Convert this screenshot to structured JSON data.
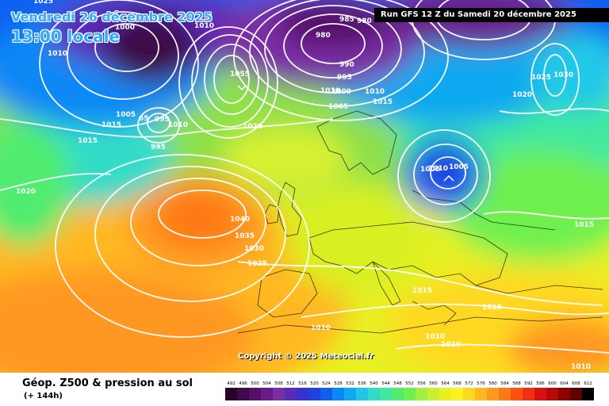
{
  "header": {
    "valid_date": "Vendredi 26 décembre 2025",
    "valid_time": "13:00 locale",
    "run_info": "Run GFS 12 Z du Samedi 20 décembre 2025"
  },
  "footer": {
    "parameter_title": "Géop. Z500 & pression au sol",
    "lead_time": "(+ 144h)",
    "copyright": "Copyright © 2025 Meteociel.fr"
  },
  "legend": {
    "values": [
      "492",
      "496",
      "500",
      "504",
      "508",
      "512",
      "516",
      "520",
      "524",
      "528",
      "532",
      "536",
      "540",
      "544",
      "548",
      "552",
      "556",
      "560",
      "564",
      "568",
      "572",
      "576",
      "580",
      "584",
      "588",
      "592",
      "596",
      "600",
      "604",
      "608",
      "612"
    ],
    "colors": [
      "#2b0029",
      "#3d0a4a",
      "#55106a",
      "#6a1a8a",
      "#7a2fa5",
      "#5a2bb5",
      "#3a2fcf",
      "#2040e0",
      "#1060f0",
      "#0a88f5",
      "#10a8f0",
      "#20c8e8",
      "#30dcc8",
      "#40e8a0",
      "#50ec70",
      "#70f050",
      "#a0f040",
      "#c8f030",
      "#e8f020",
      "#fff020",
      "#ffd820",
      "#ffb820",
      "#ff9820",
      "#ff7818",
      "#ff5010",
      "#f03010",
      "#d81010",
      "#b80808",
      "#900000",
      "#600000",
      "#000000"
    ]
  },
  "map": {
    "pressure_labels": [
      "1025",
      "1010",
      "1000",
      "1010",
      "985",
      "980",
      "980",
      "1010",
      "1055",
      "990",
      "995",
      "1000",
      "1005",
      "1010",
      "1015",
      "1025",
      "1030",
      "1020",
      "1005",
      "1000",
      "65",
      "995",
      "1010",
      "1015",
      "995",
      "1020",
      "1015",
      "1010",
      "1005",
      "1020",
      "1040",
      "1035",
      "1030",
      "1025",
      "1015",
      "1015",
      "1015",
      "1010",
      "1010",
      "1010",
      "1010"
    ]
  }
}
